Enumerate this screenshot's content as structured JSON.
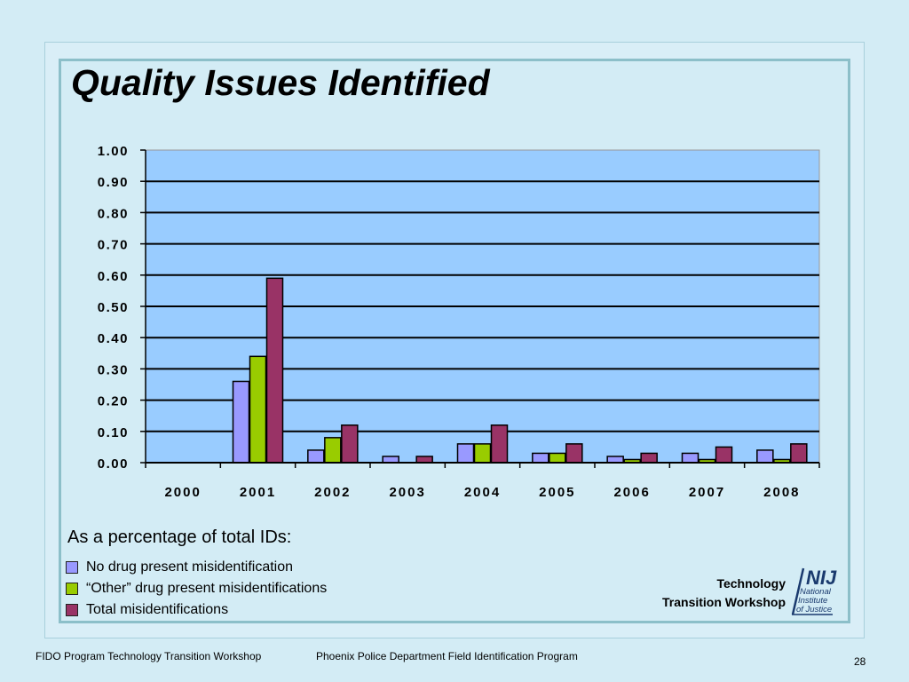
{
  "slide": {
    "title": "Quality Issues Identified",
    "caption": "As a percentage of total IDs:",
    "legend": [
      {
        "label": "No drug present misidentification",
        "color": "#9999ff"
      },
      {
        "label": "“Other” drug present misidentifications",
        "color": "#99cc00"
      },
      {
        "label": "Total misidentifications",
        "color": "#993366"
      }
    ],
    "tech_line1": "Technology",
    "tech_line2": "Transition Workshop",
    "logo": {
      "abbr": "NIJ",
      "line1": "National",
      "line2": "Institute",
      "line3": "of Justice"
    }
  },
  "footer": {
    "left": "FIDO Program Technology Transition Workshop",
    "middle": "Phoenix Police Department Field Identification Program",
    "page": "28"
  },
  "chart_data": {
    "type": "bar",
    "categories": [
      "2000",
      "2001",
      "2002",
      "2003",
      "2004",
      "2005",
      "2006",
      "2007",
      "2008"
    ],
    "series": [
      {
        "name": "No drug present misidentification",
        "color": "#9999ff",
        "values": [
          0.0,
          0.26,
          0.04,
          0.02,
          0.06,
          0.03,
          0.02,
          0.03,
          0.04
        ]
      },
      {
        "name": "“Other” drug present misidentifications",
        "color": "#99cc00",
        "values": [
          0.0,
          0.34,
          0.08,
          0.0,
          0.06,
          0.03,
          0.01,
          0.01,
          0.01
        ]
      },
      {
        "name": "Total misidentifications",
        "color": "#993366",
        "values": [
          0.0,
          0.59,
          0.12,
          0.02,
          0.12,
          0.06,
          0.03,
          0.05,
          0.06
        ]
      }
    ],
    "yticks": [
      "0.00",
      "0.10",
      "0.20",
      "0.30",
      "0.40",
      "0.50",
      "0.60",
      "0.70",
      "0.80",
      "0.90",
      "1.00"
    ],
    "ylim": [
      0,
      1.0
    ],
    "grid": true,
    "plot_background": "#99ccff"
  }
}
